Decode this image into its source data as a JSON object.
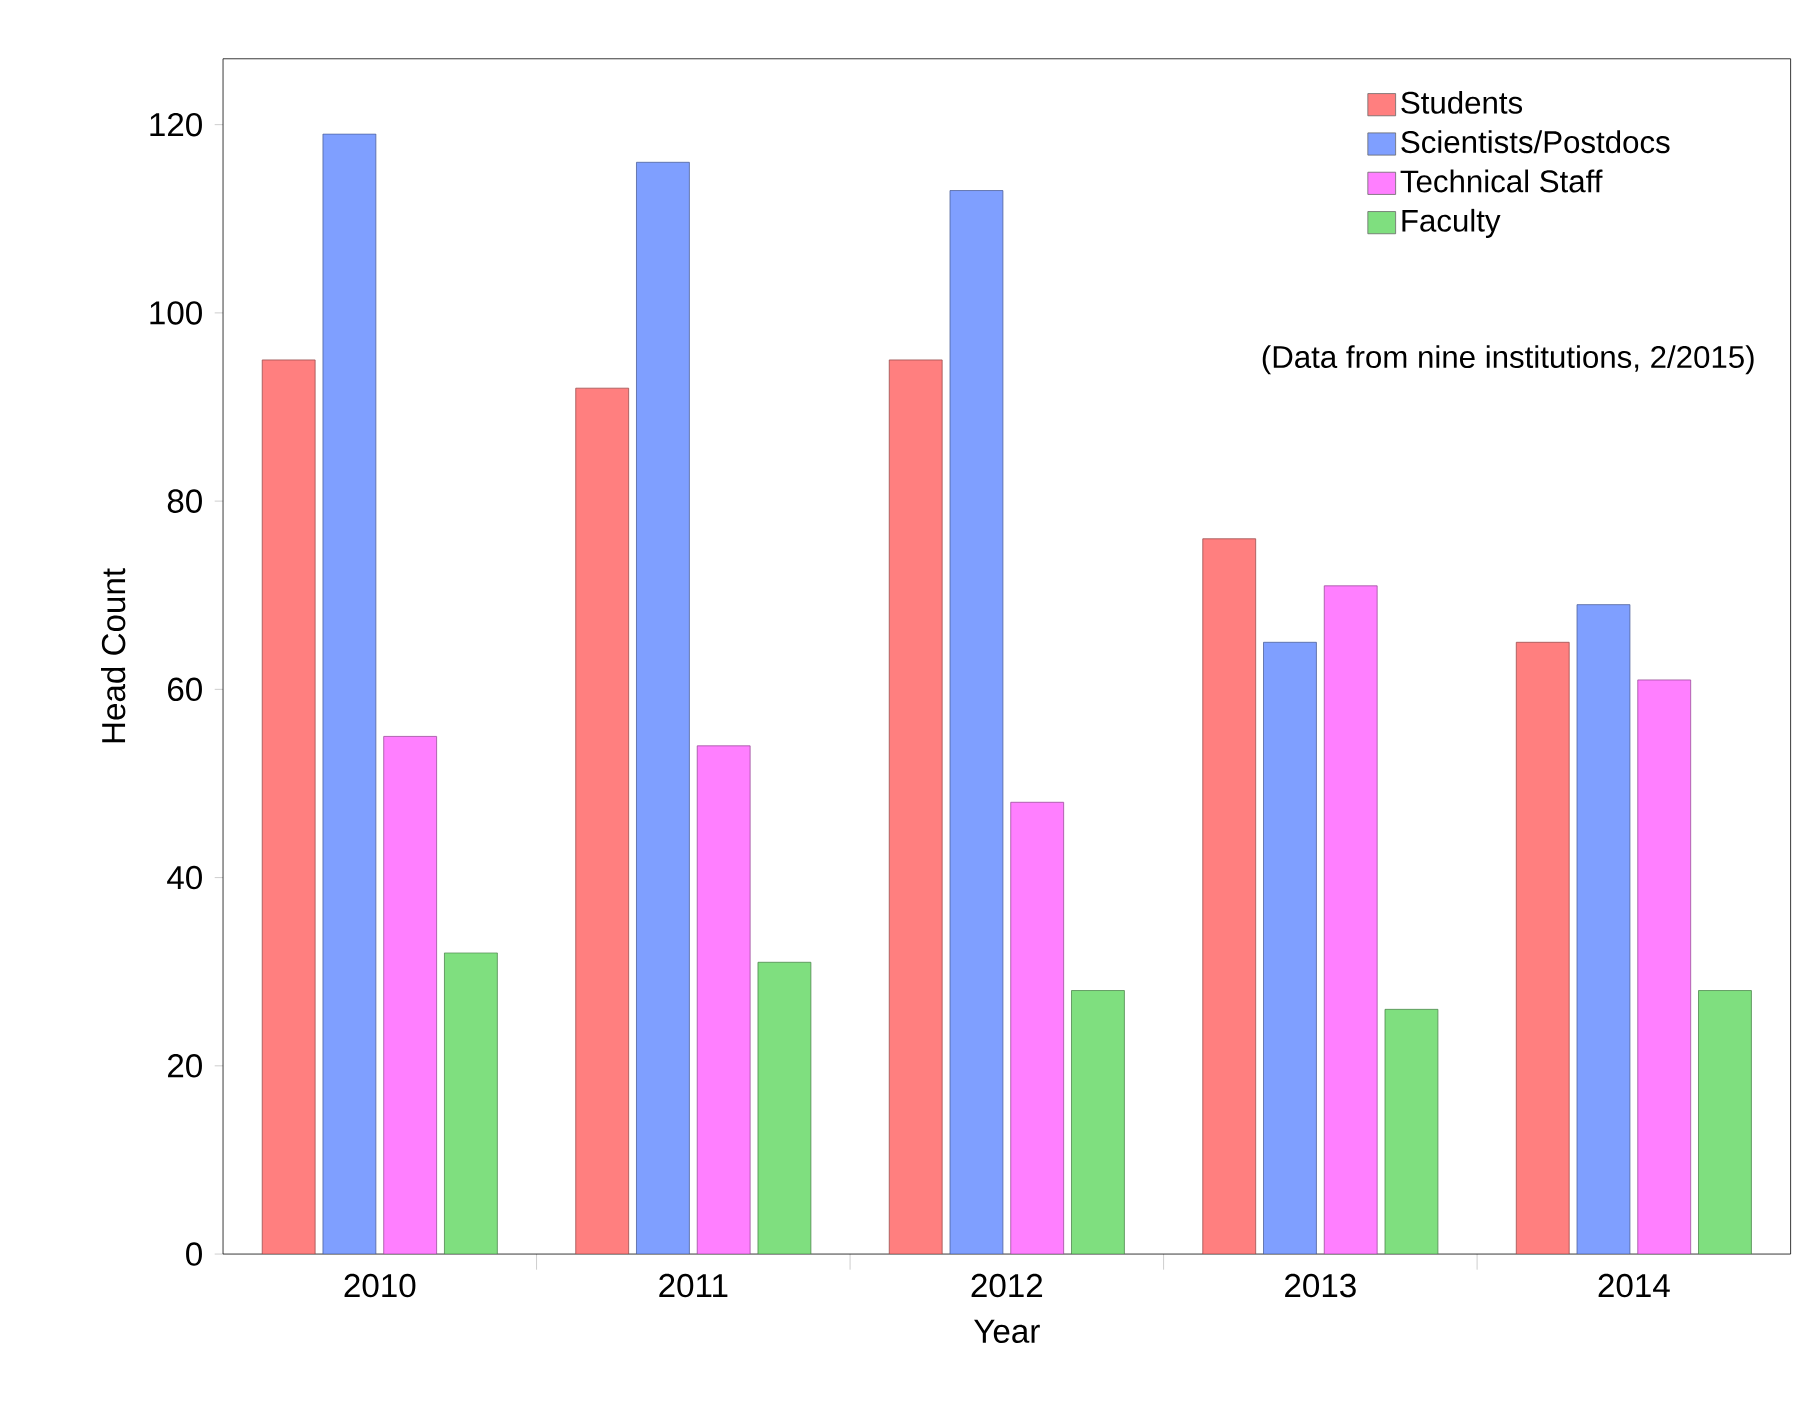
{
  "chart_data": {
    "type": "bar",
    "xlabel": "Year",
    "ylabel": "Head Count",
    "categories": [
      "2010",
      "2011",
      "2012",
      "2013",
      "2014"
    ],
    "series": [
      {
        "name": "Students",
        "color": "#ff7f7f",
        "values": [
          95,
          92,
          95,
          76,
          65
        ]
      },
      {
        "name": "Scientists/Postdocs",
        "color": "#7f9fff",
        "values": [
          119,
          116,
          113,
          65,
          69
        ]
      },
      {
        "name": "Technical Staff",
        "color": "#ff7fff",
        "values": [
          55,
          54,
          48,
          71,
          61
        ]
      },
      {
        "name": "Faculty",
        "color": "#7fdf7f",
        "values": [
          32,
          31,
          28,
          26,
          28
        ]
      }
    ],
    "ylim": [
      0,
      127
    ],
    "yticks": [
      0,
      20,
      40,
      60,
      80,
      100,
      120
    ],
    "legend": "top right",
    "grid": false,
    "annotations": [
      "(Data from nine institutions, 2/2015)"
    ]
  }
}
